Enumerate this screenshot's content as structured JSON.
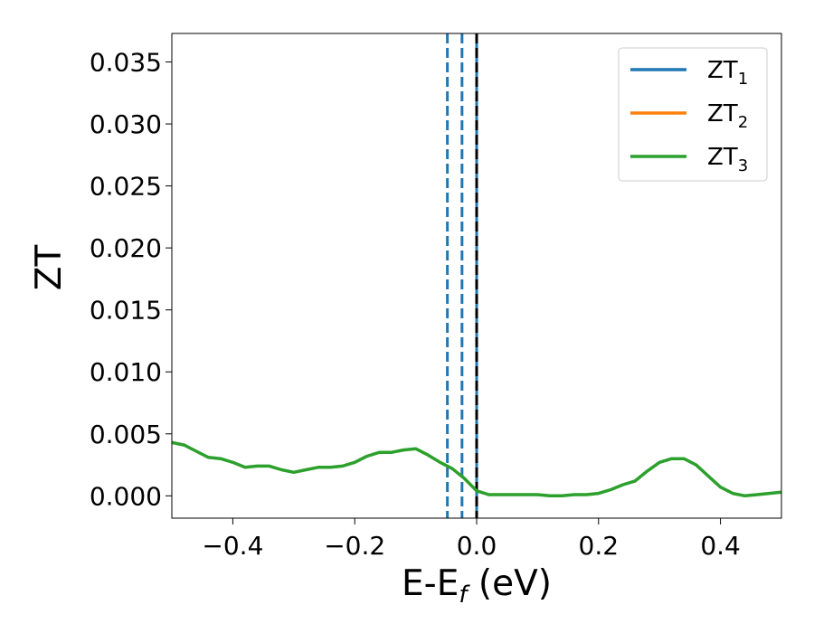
{
  "chart_data": {
    "type": "line",
    "title": "",
    "xlabel": {
      "main": "E-E",
      "sub": "f",
      "suffix": " (eV)"
    },
    "ylabel": "ZT",
    "xlim": [
      -0.5,
      0.5
    ],
    "ylim": [
      -0.0018,
      0.0373
    ],
    "xticks": [
      -0.4,
      -0.2,
      0.0,
      0.2,
      0.4
    ],
    "xtick_labels": [
      "−0.4",
      "−0.2",
      "0.0",
      "0.2",
      "0.4"
    ],
    "yticks": [
      0.0,
      0.005,
      0.01,
      0.015,
      0.02,
      0.025,
      0.03,
      0.035
    ],
    "ytick_labels": [
      "0.000",
      "0.005",
      "0.010",
      "0.015",
      "0.020",
      "0.025",
      "0.030",
      "0.035"
    ],
    "grid": false,
    "legend": {
      "placement": "top-right"
    },
    "series": [
      {
        "name": "ZT",
        "sub": "1",
        "color": "#1f77b4",
        "x": [],
        "y": []
      },
      {
        "name": "ZT",
        "sub": "2",
        "color": "#ff7f0e",
        "x": [],
        "y": []
      },
      {
        "name": "ZT",
        "sub": "3",
        "color": "#2ca02c",
        "x": [
          -0.5,
          -0.48,
          -0.46,
          -0.44,
          -0.42,
          -0.4,
          -0.38,
          -0.36,
          -0.34,
          -0.32,
          -0.3,
          -0.28,
          -0.26,
          -0.24,
          -0.22,
          -0.2,
          -0.18,
          -0.16,
          -0.14,
          -0.12,
          -0.1,
          -0.08,
          -0.06,
          -0.04,
          -0.02,
          0.0,
          0.02,
          0.04,
          0.06,
          0.08,
          0.1,
          0.12,
          0.14,
          0.16,
          0.18,
          0.2,
          0.22,
          0.24,
          0.26,
          0.28,
          0.3,
          0.32,
          0.34,
          0.36,
          0.38,
          0.4,
          0.42,
          0.44,
          0.46,
          0.48,
          0.5
        ],
        "y": [
          0.0043,
          0.0041,
          0.0036,
          0.0031,
          0.003,
          0.0027,
          0.0023,
          0.0024,
          0.0024,
          0.0021,
          0.0019,
          0.0021,
          0.0023,
          0.0023,
          0.0024,
          0.0027,
          0.0032,
          0.0035,
          0.0035,
          0.0037,
          0.0038,
          0.0033,
          0.0027,
          0.0022,
          0.0014,
          0.0004,
          0.0001,
          0.0001,
          0.0001,
          0.0001,
          0.0001,
          0.0,
          0.0,
          0.0001,
          0.0001,
          0.0002,
          0.0005,
          0.0009,
          0.0012,
          0.002,
          0.0027,
          0.003,
          0.003,
          0.0025,
          0.0016,
          0.0007,
          0.0002,
          0.0,
          0.0001,
          0.0002,
          0.0003
        ]
      }
    ],
    "vlines": [
      {
        "x": -0.048,
        "color": "#1f77b4",
        "style": "dashed"
      },
      {
        "x": -0.024,
        "color": "#1f77b4",
        "style": "dashed"
      },
      {
        "x": 0.0,
        "color": "#1f77b4",
        "style": "solid"
      },
      {
        "x": 0.0,
        "color": "#000000",
        "style": "dashed"
      }
    ]
  }
}
